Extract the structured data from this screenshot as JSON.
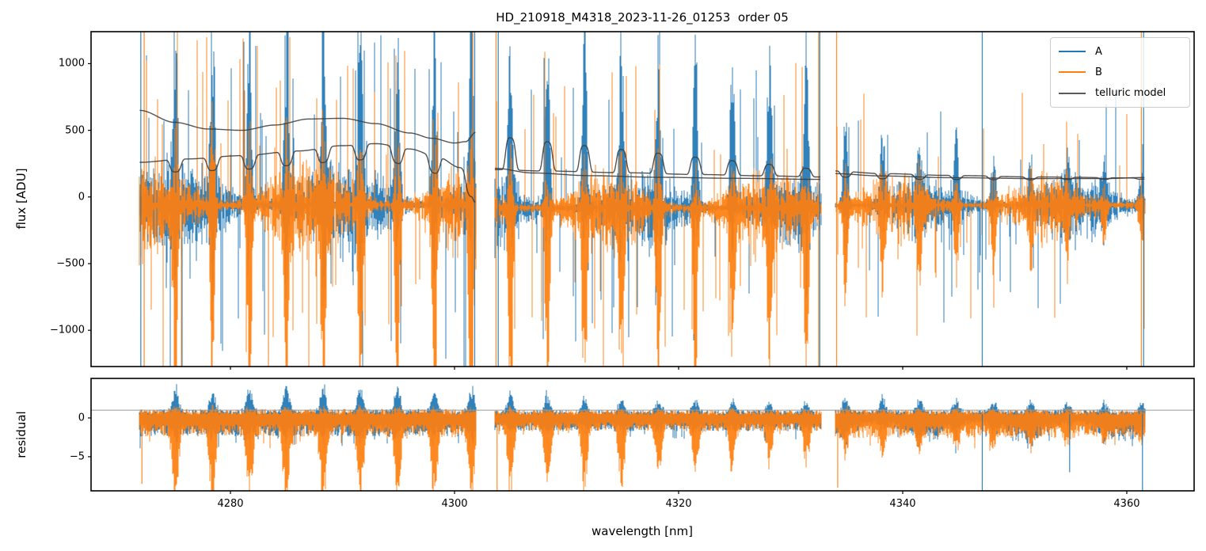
{
  "figure": {
    "title": "HD_210918_M4318_2023-11-26_01253  order 05",
    "xlabel": "wavelength [nm]",
    "ylabel_flux": "flux [ADU]",
    "ylabel_residual": "residual"
  },
  "legend": {
    "entries": [
      {
        "label": "A",
        "color": "#1f77b4"
      },
      {
        "label": "B",
        "color": "#ff7f0e"
      },
      {
        "label": "telluric model",
        "color": "#595959"
      }
    ]
  },
  "chart_data": {
    "type": "line",
    "title": "HD_210918_M4318_2023-11-26_01253  order 05",
    "xlabel": "wavelength [nm]",
    "ylabel_top": "flux [ADU]",
    "ylabel_bottom": "residual",
    "legend": [
      "A",
      "B",
      "telluric model"
    ],
    "legend_position": "upper right",
    "colors": {
      "A": "#1f77b4",
      "B": "#ff7f0e",
      "telluric_model": "#3c3c3c",
      "refline": "#999999"
    },
    "xlim": [
      4267.56,
      4366.01
    ],
    "xticks": [
      4280,
      4300,
      4320,
      4340,
      4360
    ],
    "flux_panel": {
      "ylim": [
        -1272,
        1240
      ],
      "yticks": [
        1000,
        500,
        0,
        -500,
        -1000
      ]
    },
    "residual_panel": {
      "ylim": [
        -9.4,
        5.1
      ],
      "yticks": [
        0,
        -5
      ],
      "refline": 1
    },
    "grid": false,
    "seed": 11,
    "segments": [
      {
        "x_nm": [
          4271.9,
          4301.9
        ],
        "features": {
          "start_nm": 4275.1,
          "period_nm": 3.3,
          "count": 9
        },
        "flux": {
          "center": -60,
          "band_up": 440,
          "band_dn": 520,
          "tall_prob": 0.065,
          "tall_extra": 950,
          "feat_up_A": 1500,
          "feat_dn_A": 1000,
          "feat_up_B": 1100,
          "feat_dn_B": 1550,
          "feat_decay": 0
        },
        "residual": {
          "band_up": 1.15,
          "band_dn": 2.4,
          "feat_dn_B": 10.5,
          "feat_up_A": 3.6,
          "feat_dn_A": 3.0,
          "feat_decay": 0
        }
      },
      {
        "x_nm": [
          4303.6,
          4332.7
        ],
        "features": {
          "start_nm": 4305.0,
          "period_nm": 3.3,
          "count": 9
        },
        "flux": {
          "center": -80,
          "band_up": 340,
          "band_dn": 440,
          "tall_prob": 0.045,
          "tall_extra": 800,
          "feat_up_A": 1600,
          "feat_dn_A": 600,
          "feat_up_B": 700,
          "feat_dn_B": 1600,
          "feat_decay": 0.25
        },
        "residual": {
          "band_up": 1.0,
          "band_dn": 1.7,
          "feat_dn_B": 10.0,
          "feat_up_A": 3.2,
          "feat_dn_A": 1.5,
          "feat_decay": 0.55
        }
      },
      {
        "x_nm": [
          4334.0,
          4361.6
        ],
        "features": {
          "start_nm": 4334.9,
          "period_nm": 3.3,
          "count": 9
        },
        "flux": {
          "center": -60,
          "band_up": 280,
          "band_dn": 350,
          "tall_prob": 0.035,
          "tall_extra": 650,
          "feat_up_A": 700,
          "feat_dn_A": 500,
          "feat_up_B": 600,
          "feat_dn_B": 700,
          "feat_decay": 0.6
        },
        "residual": {
          "band_up": 1.05,
          "band_dn": 2.6,
          "feat_dn_B": 3.0,
          "feat_up_A": 2.6,
          "feat_dn_A": 2.8,
          "feat_decay": 0.5
        }
      }
    ],
    "flux_edge_lines_nm": [
      {
        "nm": 4272.0,
        "series": "A"
      },
      {
        "nm": 4272.3,
        "series": "B"
      },
      {
        "nm": 4301.6,
        "series": "B"
      },
      {
        "nm": 4301.8,
        "series": "A"
      },
      {
        "nm": 4303.7,
        "series": "B"
      },
      {
        "nm": 4303.9,
        "series": "A"
      },
      {
        "nm": 4332.5,
        "series": "B"
      },
      {
        "nm": 4332.6,
        "series": "A"
      },
      {
        "nm": 4334.1,
        "series": "B"
      },
      {
        "nm": 4347.1,
        "series": "A"
      },
      {
        "nm": 4361.3,
        "series": "B"
      },
      {
        "nm": 4361.5,
        "series": "A"
      }
    ],
    "residual_events": [
      {
        "nm": 4272.1,
        "series": "B",
        "to": -8.5
      },
      {
        "nm": 4303.8,
        "series": "B",
        "to": -10
      },
      {
        "nm": 4334.2,
        "series": "B",
        "to": -9
      },
      {
        "nm": 4347.1,
        "series": "A",
        "to": -9.5
      },
      {
        "nm": 4354.9,
        "series": "A",
        "to": -7
      },
      {
        "nm": 4361.4,
        "series": "A",
        "to": -12
      }
    ],
    "model_curves": [
      {
        "segment": 0,
        "kind": "smooth",
        "points": [
          [
            4271.9,
            650
          ],
          [
            4275,
            560
          ],
          [
            4278,
            510
          ],
          [
            4281,
            500
          ],
          [
            4284,
            540
          ],
          [
            4287,
            585
          ],
          [
            4290,
            590
          ],
          [
            4293,
            550
          ],
          [
            4296,
            480
          ],
          [
            4298,
            440
          ],
          [
            4300,
            405
          ],
          [
            4301,
            415
          ],
          [
            4301.9,
            485
          ]
        ]
      },
      {
        "segment": 0,
        "kind": "features",
        "points": [
          [
            4271.9,
            260
          ],
          [
            4276,
            285
          ],
          [
            4281,
            310
          ],
          [
            4286,
            345
          ],
          [
            4290,
            385
          ],
          [
            4293,
            400
          ],
          [
            4296,
            360
          ],
          [
            4298.5,
            300
          ],
          [
            4300.5,
            220
          ],
          [
            4301.5,
            130
          ],
          [
            4301.9,
            70
          ]
        ],
        "bumps": {
          "sign": -1,
          "amp": [
            90,
            128
          ],
          "width": 0.55
        }
      },
      {
        "segment": 1,
        "kind": "smooth",
        "points": [
          [
            4303.6,
            215
          ],
          [
            4307,
            180
          ],
          [
            4312,
            160
          ],
          [
            4318,
            148
          ],
          [
            4325,
            140
          ],
          [
            4332.7,
            132
          ]
        ]
      },
      {
        "segment": 1,
        "kind": "features",
        "points": [
          [
            4303.6,
            205
          ],
          [
            4308,
            195
          ],
          [
            4315,
            182
          ],
          [
            4322,
            168
          ],
          [
            4328,
            158
          ],
          [
            4332.7,
            150
          ]
        ],
        "bumps": {
          "sign": 1,
          "amp": [
            250,
            55
          ],
          "width": 0.5
        }
      },
      {
        "segment": 2,
        "kind": "smooth",
        "points": [
          [
            4334,
            175
          ],
          [
            4338,
            158
          ],
          [
            4344,
            145
          ],
          [
            4352,
            138
          ],
          [
            4358,
            138
          ],
          [
            4361.6,
            146
          ]
        ]
      },
      {
        "segment": 2,
        "kind": "features",
        "points": [
          [
            4334,
            195
          ],
          [
            4338,
            176
          ],
          [
            4344,
            162
          ],
          [
            4352,
            150
          ],
          [
            4361.6,
            142
          ]
        ],
        "bumps": {
          "sign": -1,
          "amp": [
            45,
            8
          ],
          "width": 0.5
        }
      }
    ]
  }
}
